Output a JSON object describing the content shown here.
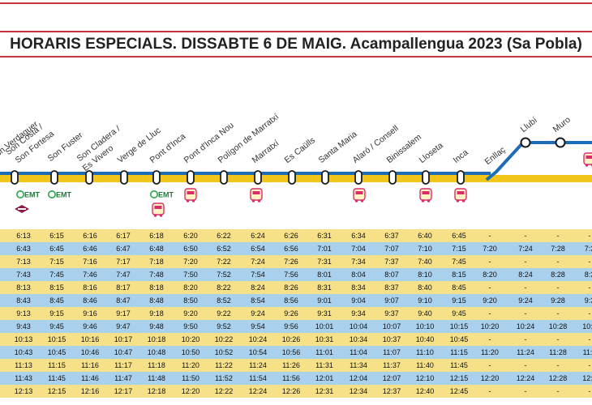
{
  "header": {
    "title": "HORARIS ESPECIALS. DISSABTE 6 DE MAIG. Acampallengua 2023 (Sa Pobla)"
  },
  "colors": {
    "yellow_row": "#f6e189",
    "blue_row": "#a9d0ec",
    "yellow_line": "#f2c619",
    "blue_line": "#1d6cb5",
    "red": "#c8323c",
    "emt_green": "#2aa84a",
    "bus_pink": "#d92d6b"
  },
  "stops": [
    {
      "label": "Son Verdaguer",
      "icons": [
        "emt-icon",
        "train-icon"
      ]
    },
    {
      "label": "Son Costa /",
      "icons": []
    },
    {
      "label": "Son Fortesa",
      "icons": []
    },
    {
      "label": "Son Fuster",
      "icons": [
        "emt-icon"
      ]
    },
    {
      "label": "Son Cladera /",
      "icons": []
    },
    {
      "label": "Es Vivero",
      "icons": []
    },
    {
      "label": "Verge de Lluc",
      "icons": []
    },
    {
      "label": "Pont d'Inca",
      "icons": [
        "emt-icon",
        "bus-icon"
      ]
    },
    {
      "label": "Pont d'Inca Nou",
      "icons": [
        "bus-icon"
      ]
    },
    {
      "label": "Polígon de Marratxí",
      "icons": []
    },
    {
      "label": "Marratxí",
      "icons": [
        "bus-icon"
      ]
    },
    {
      "label": "Es Caülls",
      "icons": []
    },
    {
      "label": "Santa Maria",
      "icons": []
    },
    {
      "label": "Alaró / Consell",
      "icons": [
        "bus-icon"
      ]
    },
    {
      "label": "Binissalem",
      "icons": []
    },
    {
      "label": "Lloseta",
      "icons": [
        "bus-icon"
      ]
    },
    {
      "label": "Inca",
      "icons": [
        "bus-icon"
      ]
    },
    {
      "label": "Enllaç",
      "icons": []
    },
    {
      "label": "Llubí",
      "icons": []
    },
    {
      "label": "Muro",
      "icons": []
    }
  ],
  "emt_label": "EMT",
  "schedule": [
    [
      "6:13",
      "6:15",
      "6:16",
      "6:17",
      "6:18",
      "6:20",
      "6:22",
      "6:24",
      "6:26",
      "6:31",
      "6:34",
      "6:37",
      "6:40",
      "6:45",
      "-",
      "-",
      "-",
      "-"
    ],
    [
      "6:43",
      "6:45",
      "6:46",
      "6:47",
      "6:48",
      "6:50",
      "6:52",
      "6:54",
      "6:56",
      "7:01",
      "7:04",
      "7:07",
      "7:10",
      "7:15",
      "7:20",
      "7:24",
      "7:28",
      "7:3"
    ],
    [
      "7:13",
      "7:15",
      "7:16",
      "7:17",
      "7:18",
      "7:20",
      "7:22",
      "7:24",
      "7:26",
      "7:31",
      "7:34",
      "7:37",
      "7:40",
      "7:45",
      "-",
      "-",
      "-",
      "-"
    ],
    [
      "7:43",
      "7:45",
      "7:46",
      "7:47",
      "7:48",
      "7:50",
      "7:52",
      "7:54",
      "7:56",
      "8:01",
      "8:04",
      "8:07",
      "8:10",
      "8:15",
      "8:20",
      "8:24",
      "8:28",
      "8:3"
    ],
    [
      "8:13",
      "8:15",
      "8:16",
      "8:17",
      "8:18",
      "8:20",
      "8:22",
      "8:24",
      "8:26",
      "8:31",
      "8:34",
      "8:37",
      "8:40",
      "8:45",
      "-",
      "-",
      "-",
      "-"
    ],
    [
      "8:43",
      "8:45",
      "8:46",
      "8:47",
      "8:48",
      "8:50",
      "8:52",
      "8:54",
      "8:56",
      "9:01",
      "9:04",
      "9:07",
      "9:10",
      "9:15",
      "9:20",
      "9:24",
      "9:28",
      "9:3"
    ],
    [
      "9:13",
      "9:15",
      "9:16",
      "9:17",
      "9:18",
      "9:20",
      "9:22",
      "9:24",
      "9:26",
      "9:31",
      "9:34",
      "9:37",
      "9:40",
      "9:45",
      "-",
      "-",
      "-",
      "-"
    ],
    [
      "9:43",
      "9:45",
      "9:46",
      "9:47",
      "9:48",
      "9:50",
      "9:52",
      "9:54",
      "9:56",
      "10:01",
      "10:04",
      "10:07",
      "10:10",
      "10:15",
      "10:20",
      "10:24",
      "10:28",
      "10:3"
    ],
    [
      "10:13",
      "10:15",
      "10:16",
      "10:17",
      "10:18",
      "10:20",
      "10:22",
      "10:24",
      "10:26",
      "10:31",
      "10:34",
      "10:37",
      "10:40",
      "10:45",
      "-",
      "-",
      "-",
      "-"
    ],
    [
      "10:43",
      "10:45",
      "10:46",
      "10:47",
      "10:48",
      "10:50",
      "10:52",
      "10:54",
      "10:56",
      "11:01",
      "11:04",
      "11:07",
      "11:10",
      "11:15",
      "11:20",
      "11:24",
      "11:28",
      "11:3"
    ],
    [
      "11:13",
      "11:15",
      "11:16",
      "11:17",
      "11:18",
      "11:20",
      "11:22",
      "11:24",
      "11:26",
      "11:31",
      "11:34",
      "11:37",
      "11:40",
      "11:45",
      "-",
      "-",
      "-",
      "-"
    ],
    [
      "11:43",
      "11:45",
      "11:46",
      "11:47",
      "11:48",
      "11:50",
      "11:52",
      "11:54",
      "11:56",
      "12:01",
      "12:04",
      "12:07",
      "12:10",
      "12:15",
      "12:20",
      "12:24",
      "12:28",
      "12:3"
    ],
    [
      "12:13",
      "12:15",
      "12:16",
      "12:17",
      "12:18",
      "12:20",
      "12:22",
      "12:24",
      "12:26",
      "12:31",
      "12:34",
      "12:37",
      "12:40",
      "12:45",
      "-",
      "-",
      "-",
      "-"
    ]
  ]
}
